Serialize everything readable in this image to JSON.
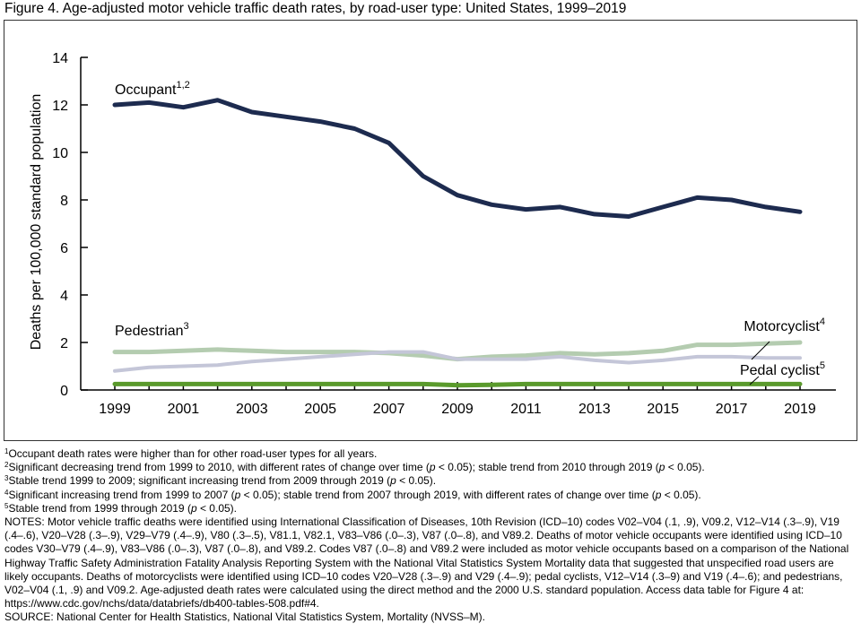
{
  "figure_title": "Figure 4. Age-adjusted motor vehicle traffic death rates, by road-user type: United States, 1999–2019",
  "chart_data": {
    "type": "line",
    "x": [
      1999,
      2000,
      2001,
      2002,
      2003,
      2004,
      2005,
      2006,
      2007,
      2008,
      2009,
      2010,
      2011,
      2012,
      2013,
      2014,
      2015,
      2016,
      2017,
      2018,
      2019
    ],
    "xticks": [
      "1999",
      "2001",
      "2003",
      "2005",
      "2007",
      "2009",
      "2011",
      "2013",
      "2015",
      "2017",
      "2019"
    ],
    "yticks": [
      "0",
      "2",
      "4",
      "6",
      "8",
      "10",
      "12",
      "14"
    ],
    "ylim": [
      0,
      14
    ],
    "ylabel": "Deaths per 100,000 standard population",
    "grid": false,
    "series": [
      {
        "name": "Occupant",
        "sup": "1,2",
        "color": "#1d2b4f",
        "values": [
          12.0,
          12.1,
          11.9,
          12.2,
          11.7,
          11.5,
          11.3,
          11.0,
          10.4,
          9.0,
          8.2,
          7.8,
          7.6,
          7.7,
          7.4,
          7.3,
          7.7,
          8.1,
          8.0,
          7.7,
          7.5
        ]
      },
      {
        "name": "Pedestrian",
        "sup": "3",
        "color": "#b4ccb0",
        "values": [
          1.6,
          1.6,
          1.65,
          1.7,
          1.65,
          1.6,
          1.6,
          1.6,
          1.55,
          1.45,
          1.3,
          1.4,
          1.45,
          1.55,
          1.5,
          1.55,
          1.65,
          1.9,
          1.9,
          1.95,
          2.0
        ]
      },
      {
        "name": "Motorcyclist",
        "sup": "4",
        "color": "#c4c6d8",
        "values": [
          0.8,
          0.95,
          1.0,
          1.05,
          1.2,
          1.3,
          1.4,
          1.5,
          1.6,
          1.6,
          1.3,
          1.3,
          1.3,
          1.4,
          1.25,
          1.15,
          1.25,
          1.4,
          1.4,
          1.35,
          1.35
        ]
      },
      {
        "name": "Pedal cyclist",
        "sup": "5",
        "color": "#5a9a2c",
        "values": [
          0.25,
          0.25,
          0.25,
          0.25,
          0.25,
          0.25,
          0.25,
          0.25,
          0.25,
          0.25,
          0.2,
          0.22,
          0.25,
          0.25,
          0.25,
          0.25,
          0.25,
          0.25,
          0.25,
          0.25,
          0.25
        ]
      }
    ]
  },
  "footnotes": [
    {
      "sup": "1",
      "text": "Occupant death rates were higher than for other road-user types for all years."
    },
    {
      "sup": "2",
      "text": "Significant decreasing trend from 1999 to 2010, with different rates of change over time (p < 0.05); stable trend from 2010 through 2019 (p < 0.05)."
    },
    {
      "sup": "3",
      "text": "Stable trend 1999 to 2009; significant increasing trend from 2009 through 2019 (p < 0.05)."
    },
    {
      "sup": "4",
      "text": "Significant increasing trend from 1999 to 2007 (p < 0.05); stable trend from 2007 through 2019, with different rates of change over time (p < 0.05)."
    },
    {
      "sup": "5",
      "text": "Stable trend from 1999 through 2019 (p < 0.05)."
    }
  ],
  "notes": "NOTES: Motor vehicle traffic deaths were identified using International Classification of Diseases, 10th Revision (ICD–10) codes V02–V04 (.1, .9), V09.2, V12–V14 (.3–.9), V19 (.4–.6), V20–V28 (.3–.9), V29–V79 (.4–.9), V80 (.3–.5), V81.1, V82.1, V83–V86 (.0–.3), V87 (.0–.8), and V89.2. Deaths of motor vehicle occupants were identified using ICD–10 codes V30–V79 (.4–.9), V83–V86 (.0–.3), V87 (.0–.8), and V89.2. Codes V87 (.0–.8) and V89.2 were included as motor vehicle occupants based on a comparison of the National Highway Traffic Safety Administration Fatality Analysis Reporting System with the National Vital Statistics System Mortality data that suggested that unspecified road users are likely occupants. Deaths of motorcyclists were identified using ICD–10 codes V20–V28 (.3–.9) and V29 (.4–.9); pedal cyclists, V12–V14 (.3–9) and V19 (.4–.6); and pedestrians, V02–V04 (.1, .9) and V09.2. Age-adjusted death rates were calculated using the direct method and the 2000 U.S. standard population. Access data table for Figure 4 at:",
  "data_link": "https://www.cdc.gov/nchs/data/databriefs/db400-tables-508.pdf#4.",
  "source": "SOURCE: National Center for Health Statistics, National Vital Statistics System, Mortality (NVSS–M)."
}
